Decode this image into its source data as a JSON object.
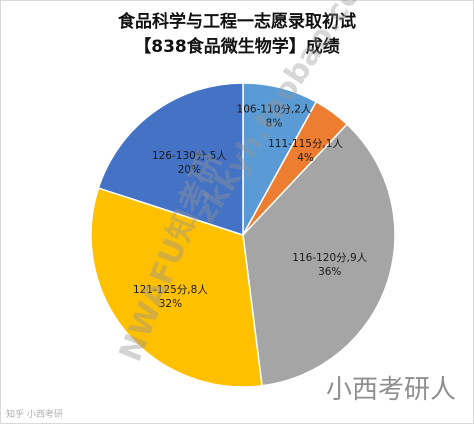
{
  "title_line1": "食品科学与工程一志愿录取初试",
  "title_line2": "【838食品微生物学】成绩",
  "chart_data": {
    "type": "pie",
    "title": "食品科学与工程一志愿录取初试【838食品微生物学】成绩",
    "slices": [
      {
        "label": "106-110分,2人",
        "percent_label": "8%",
        "value": 2,
        "color": "#5b9bd5"
      },
      {
        "label": "111-115分,1人",
        "percent_label": "4%",
        "value": 1,
        "color": "#ed7d31"
      },
      {
        "label": "116-120分,9人",
        "percent_label": "36%",
        "value": 9,
        "color": "#a5a5a5"
      },
      {
        "label": "121-125分,8人",
        "percent_label": "32%",
        "value": 8,
        "color": "#ffc000"
      },
      {
        "label": "126-130分,5人",
        "percent_label": "20%",
        "value": 5,
        "color": "#4472c4"
      }
    ]
  },
  "watermarks": {
    "url": "zkkyh.taobao.com",
    "school": "NWAFU知考研",
    "brand": "小西考研人",
    "corner": "知乎 小西考研"
  }
}
